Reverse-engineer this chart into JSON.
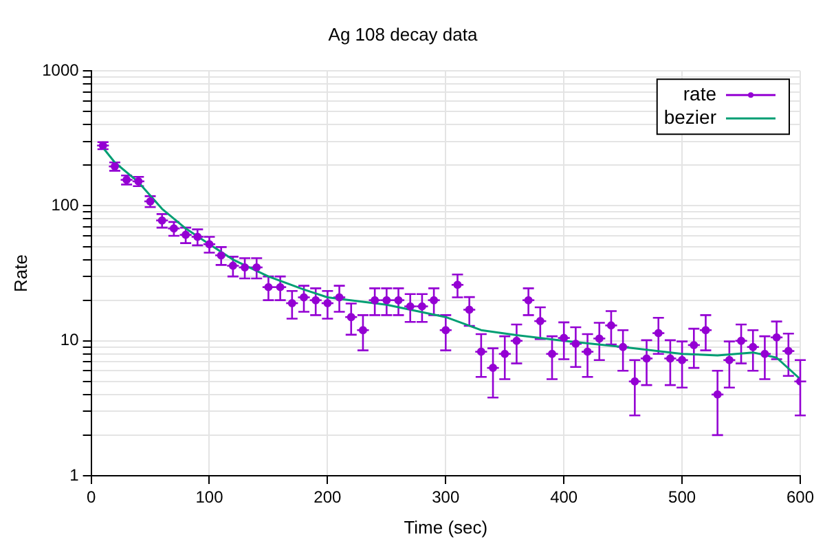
{
  "chart_data": {
    "type": "scatter",
    "title": "Ag 108 decay data",
    "xlabel": "Time (sec)",
    "ylabel": "Rate",
    "log": "y",
    "grid": true,
    "legend": "top right",
    "marker": "circle",
    "xlim": [
      0,
      600
    ],
    "xticks": [
      0,
      100,
      200,
      300,
      400,
      500,
      600
    ],
    "ylim": [
      1,
      1000
    ],
    "yticks": [
      1,
      {
        "value": 2,
        "label": null
      },
      {
        "value": 3,
        "label": null
      },
      {
        "value": 4,
        "label": null
      },
      {
        "value": 5,
        "label": null
      },
      {
        "value": 6,
        "label": null
      },
      {
        "value": 7,
        "label": null
      },
      {
        "value": 8,
        "label": null
      },
      {
        "value": 9,
        "label": null
      },
      10,
      {
        "value": 20,
        "label": null
      },
      {
        "value": 30,
        "label": null
      },
      {
        "value": 40,
        "label": null
      },
      {
        "value": 50,
        "label": null
      },
      {
        "value": 60,
        "label": null
      },
      {
        "value": 70,
        "label": null
      },
      {
        "value": 80,
        "label": null
      },
      {
        "value": 90,
        "label": null
      },
      100,
      {
        "value": 200,
        "label": null
      },
      {
        "value": 300,
        "label": null
      },
      {
        "value": 400,
        "label": null
      },
      {
        "value": 500,
        "label": null
      },
      {
        "value": 600,
        "label": null
      },
      {
        "value": 700,
        "label": null
      },
      {
        "value": 800,
        "label": null
      },
      {
        "value": 900,
        "label": null
      },
      1000
    ],
    "series": [
      {
        "name": "rate",
        "color": "#9400d3",
        "x": [
          10,
          20,
          30,
          40,
          50,
          60,
          70,
          80,
          90,
          100,
          110,
          120,
          130,
          140,
          150,
          160,
          170,
          180,
          190,
          200,
          210,
          220,
          230,
          240,
          250,
          260,
          270,
          280,
          290,
          300,
          310,
          320,
          330,
          340,
          350,
          360,
          370,
          380,
          390,
          400,
          410,
          420,
          430,
          440,
          450,
          460,
          470,
          480,
          490,
          500,
          510,
          520,
          530,
          540,
          550,
          560,
          570,
          580,
          590,
          600
        ],
        "values": [
          280,
          196,
          156,
          152,
          108,
          78,
          68,
          61,
          59,
          52,
          43,
          36,
          35,
          35,
          25,
          25,
          19,
          21,
          20,
          19,
          21,
          15,
          12,
          20,
          20,
          20,
          18,
          18,
          20,
          12,
          26,
          17,
          8.3,
          6.3,
          8,
          10,
          20,
          14,
          8,
          10.5,
          9.5,
          8.3,
          10.4,
          13,
          9,
          5,
          7.4,
          11.4,
          7.4,
          7.2,
          9.3,
          12,
          4,
          7.2,
          10,
          9,
          8,
          10.6,
          8.4,
          5
        ],
        "errors": [
          17,
          14,
          12,
          12,
          10,
          9,
          8,
          8,
          8,
          7,
          6.5,
          6,
          6,
          6,
          5,
          5,
          4.4,
          4.6,
          4.5,
          4.4,
          4.6,
          3.9,
          3.5,
          4.5,
          4.5,
          4.5,
          4.2,
          4.2,
          4.5,
          3.5,
          5,
          4.1,
          2.9,
          2.5,
          2.8,
          3.2,
          4.5,
          3.7,
          2.8,
          3.2,
          3.1,
          2.9,
          3.2,
          3.6,
          3,
          2.2,
          2.7,
          3.4,
          2.7,
          2.7,
          3,
          3.5,
          2,
          2.7,
          3.2,
          3,
          2.8,
          3.3,
          2.9,
          2.2
        ],
        "xerrors": [
          5,
          5,
          5,
          5,
          5,
          5,
          5,
          5,
          5,
          5,
          5,
          5,
          5,
          5,
          5,
          5,
          5,
          5,
          5,
          5,
          5,
          5,
          5,
          5,
          5,
          5,
          5,
          5,
          5,
          5,
          5,
          5,
          5,
          5,
          5,
          5,
          5,
          5,
          5,
          5,
          5,
          5,
          5,
          5,
          5,
          5,
          5,
          5,
          5,
          5,
          5,
          5,
          5,
          5,
          5,
          5,
          5,
          5,
          5,
          5
        ]
      },
      {
        "name": "bezier",
        "type": "line",
        "color": "#009e73",
        "marker": "none",
        "x": [
          10,
          20,
          40,
          60,
          80,
          100,
          120,
          150,
          180,
          200,
          250,
          300,
          330,
          360,
          400,
          450,
          500,
          530,
          560,
          580,
          600
        ],
        "values": [
          270,
          210,
          150,
          95,
          68,
          52,
          40,
          30,
          24,
          21,
          18.5,
          15,
          12,
          11,
          10,
          9,
          8,
          7.8,
          8.2,
          7.5,
          5.2
        ]
      }
    ]
  }
}
